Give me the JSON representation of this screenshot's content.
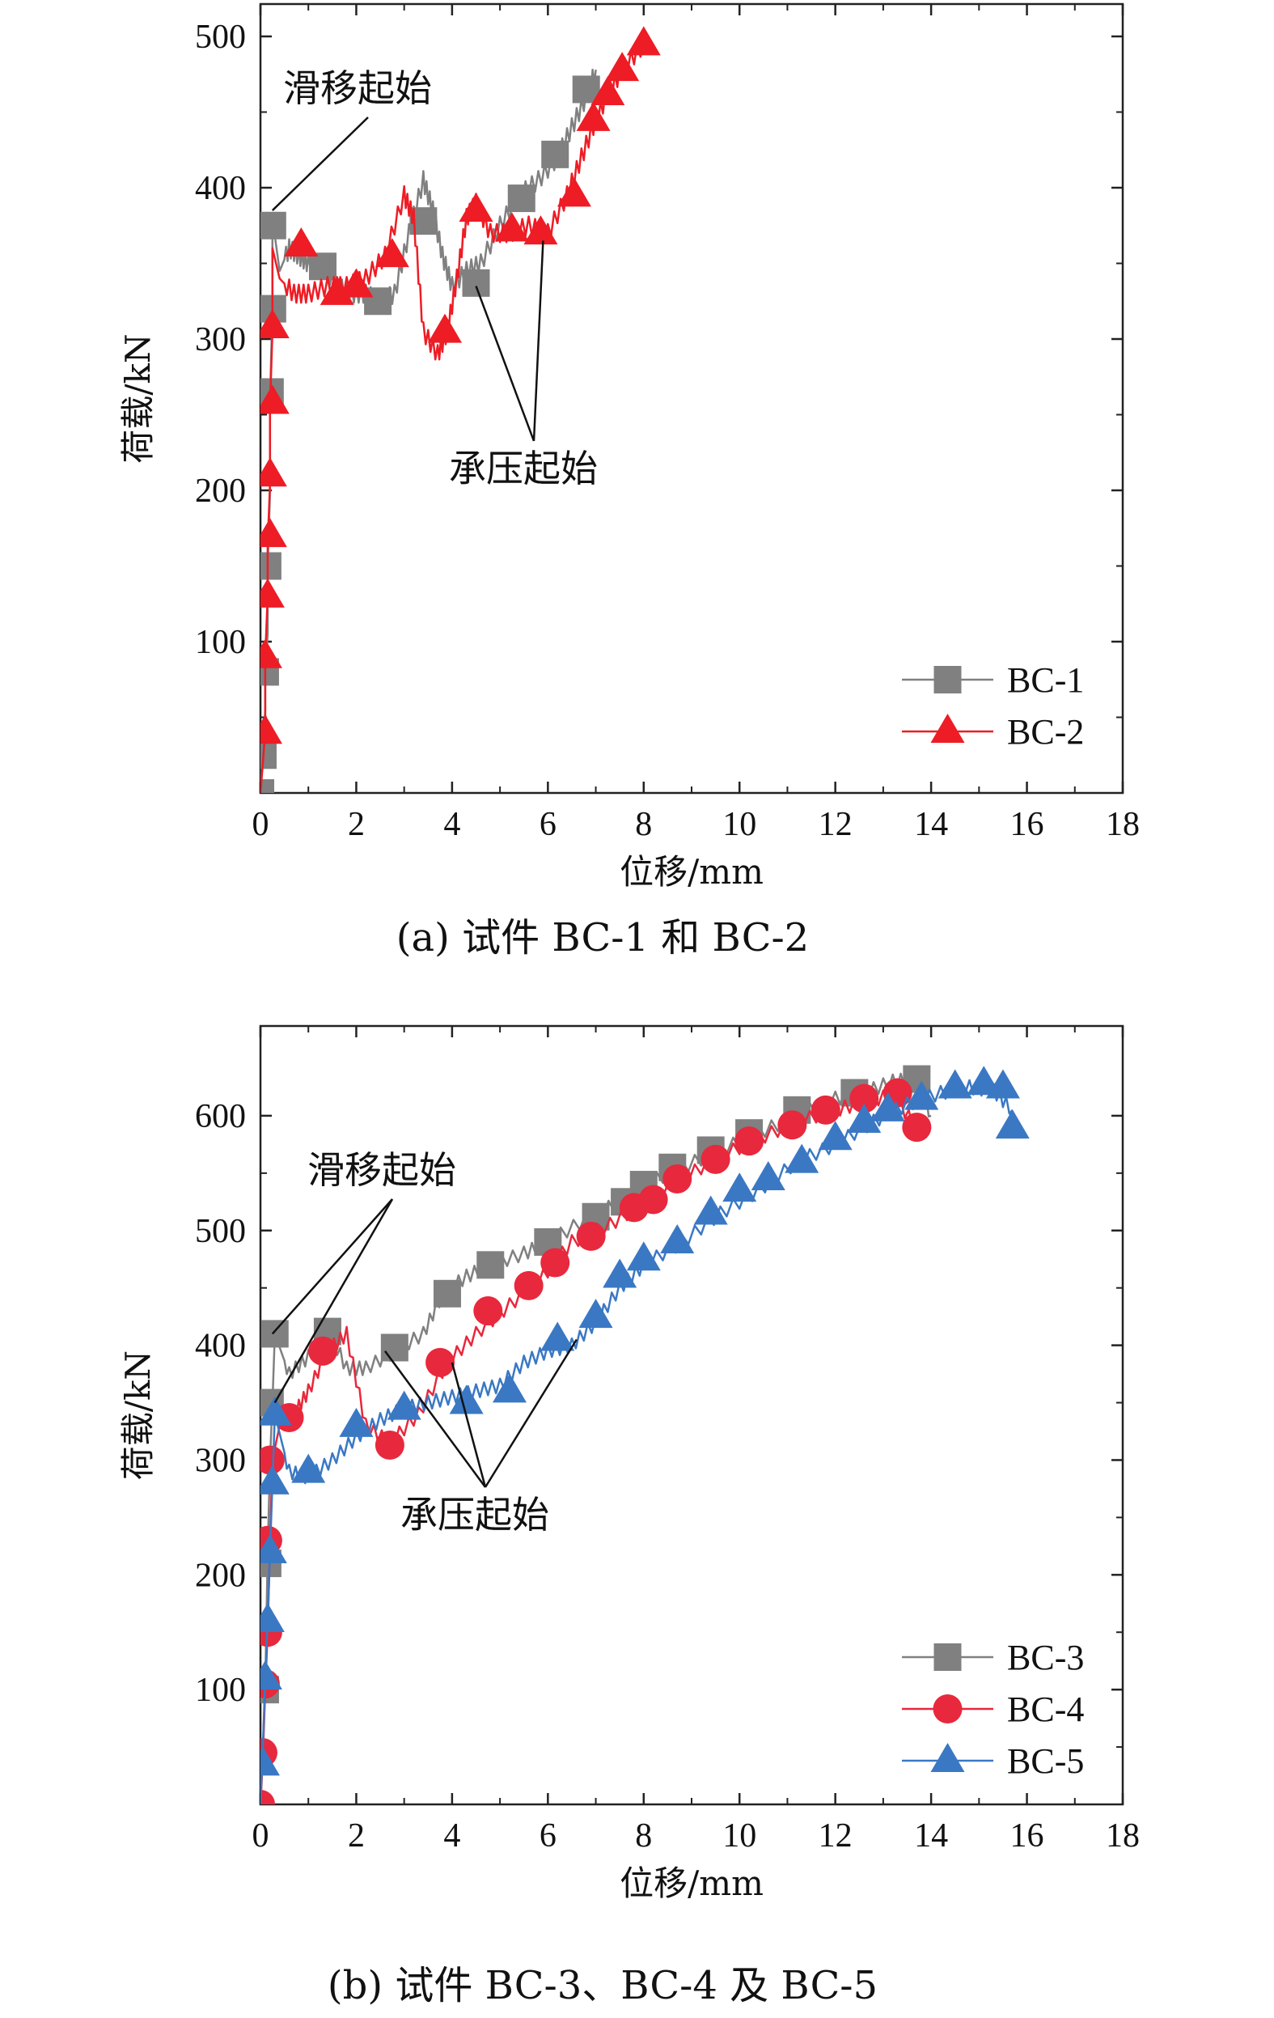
{
  "chart_data": [
    {
      "type": "line",
      "panel": "a",
      "caption": "(a) 试件 BC-1 和 BC-2",
      "xlabel": "位移/mm",
      "ylabel": "荷载/kN",
      "xlim": [
        0,
        18
      ],
      "ylim": [
        0,
        500
      ],
      "xticks": [
        0,
        2,
        4,
        6,
        8,
        10,
        12,
        14,
        16,
        18
      ],
      "yticks": [
        100,
        200,
        300,
        400,
        500
      ],
      "legend_position": "bottom-right",
      "annotations": [
        {
          "text": "滑移起始",
          "x": 0.25,
          "y": 385
        },
        {
          "text": "承压起始",
          "x": [
            4.5,
            5.9
          ],
          "y": [
            335,
            365
          ]
        }
      ],
      "series": [
        {
          "name": "BC-1",
          "color": "#808080",
          "marker": "square",
          "x": [
            0.0,
            0.05,
            0.1,
            0.1,
            0.15,
            0.15,
            0.2,
            0.2,
            0.25,
            0.25,
            0.4,
            0.6,
            0.8,
            1.0,
            1.3,
            1.6,
            1.9,
            2.2,
            2.5,
            2.8,
            3.1,
            3.4,
            3.6,
            3.8,
            4.0,
            4.3,
            4.6,
            5.0,
            5.4,
            5.8,
            6.2,
            6.5,
            6.8,
            7.0
          ],
          "y": [
            0,
            25,
            55,
            80,
            105,
            150,
            200,
            260,
            320,
            380,
            345,
            360,
            355,
            350,
            348,
            335,
            330,
            330,
            325,
            330,
            370,
            405,
            385,
            355,
            335,
            345,
            350,
            375,
            395,
            405,
            420,
            440,
            460,
            478
          ],
          "marker_x": [
            0.0,
            0.05,
            0.1,
            0.15,
            0.2,
            0.25,
            0.25,
            1.3,
            2.45,
            3.4,
            4.5,
            5.45,
            6.15,
            6.8
          ],
          "marker_y": [
            0,
            25,
            80,
            150,
            265,
            320,
            375,
            348,
            325,
            378,
            337,
            393,
            422,
            465
          ]
        },
        {
          "name": "BC-2",
          "color": "#ee1c25",
          "marker": "triangle",
          "x": [
            0.0,
            0.1,
            0.1,
            0.15,
            0.15,
            0.2,
            0.2,
            0.25,
            0.25,
            0.4,
            0.7,
            1.0,
            1.4,
            1.8,
            2.2,
            2.6,
            3.0,
            3.2,
            3.4,
            3.7,
            3.9,
            4.1,
            4.3,
            4.5,
            4.8,
            5.2,
            5.6,
            6.0,
            6.4,
            6.7,
            7.0,
            7.3,
            7.6,
            8.0
          ],
          "y": [
            0,
            40,
            90,
            130,
            165,
            205,
            255,
            305,
            360,
            340,
            330,
            330,
            335,
            335,
            340,
            355,
            395,
            380,
            305,
            290,
            305,
            340,
            380,
            390,
            370,
            370,
            375,
            370,
            395,
            420,
            445,
            465,
            480,
            495
          ],
          "marker_x": [
            0.1,
            0.1,
            0.15,
            0.2,
            0.2,
            0.25,
            0.25,
            0.85,
            1.6,
            2.0,
            2.75,
            3.85,
            4.5,
            5.25,
            5.85,
            6.55,
            6.95,
            7.25,
            7.55,
            8.0
          ],
          "marker_y": [
            40,
            90,
            130,
            170,
            210,
            258,
            308,
            362,
            330,
            335,
            355,
            305,
            385,
            372,
            370,
            395,
            445,
            462,
            478,
            495
          ]
        }
      ]
    },
    {
      "type": "line",
      "panel": "b",
      "caption": "(b) 试件 BC-3、BC-4 及 BC-5",
      "xlabel": "位移/mm",
      "ylabel": "荷载/kN",
      "xlim": [
        0,
        18
      ],
      "ylim": [
        0,
        650
      ],
      "xticks": [
        0,
        2,
        4,
        6,
        8,
        10,
        12,
        14,
        16,
        18
      ],
      "yticks": [
        100,
        200,
        300,
        400,
        500,
        600
      ],
      "legend_position": "bottom-right",
      "annotations": [
        {
          "text": "滑移起始",
          "x": [
            0.25,
            0.3
          ],
          "y": [
            410,
            350
          ]
        },
        {
          "text": "承压起始",
          "x": [
            2.6,
            4.0,
            6.6
          ],
          "y": [
            395,
            385,
            405
          ]
        }
      ],
      "series": [
        {
          "name": "BC-3",
          "color": "#808080",
          "marker": "square",
          "x": [
            0.0,
            0.1,
            0.15,
            0.2,
            0.25,
            0.3,
            0.6,
            1.0,
            1.4,
            1.8,
            2.2,
            2.8,
            3.4,
            3.8,
            4.3,
            4.8,
            5.5,
            6.0,
            6.8,
            7.5,
            8.0,
            8.8,
            9.6,
            10.4,
            11.2,
            12.0,
            12.6,
            13.2,
            13.7,
            14.0
          ],
          "y": [
            0,
            100,
            220,
            300,
            350,
            410,
            375,
            390,
            415,
            380,
            380,
            395,
            410,
            445,
            460,
            470,
            480,
            490,
            510,
            525,
            540,
            555,
            570,
            585,
            600,
            615,
            620,
            630,
            632,
            600
          ],
          "marker_x": [
            0.1,
            0.15,
            0.2,
            0.3,
            1.4,
            2.8,
            3.9,
            4.8,
            6.0,
            7.0,
            7.6,
            8.0,
            8.6,
            9.4,
            10.2,
            11.2,
            12.4,
            13.7
          ],
          "marker_y": [
            100,
            210,
            350,
            410,
            412,
            398,
            445,
            470,
            490,
            512,
            525,
            540,
            555,
            570,
            585,
            605,
            620,
            632
          ]
        },
        {
          "name": "BC-4",
          "color": "#e8283c",
          "marker": "circle",
          "x": [
            0.0,
            0.05,
            0.1,
            0.15,
            0.2,
            0.25,
            0.4,
            0.7,
            1.0,
            1.4,
            1.8,
            2.2,
            2.7,
            3.3,
            3.9,
            4.5,
            5.2,
            5.9,
            6.5,
            7.3,
            8.0,
            8.8,
            9.6,
            10.4,
            11.2,
            12.0,
            12.6,
            13.2,
            13.7
          ],
          "y": [
            0,
            40,
            100,
            150,
            230,
            300,
            330,
            340,
            360,
            395,
            410,
            330,
            315,
            340,
            385,
            410,
            435,
            460,
            490,
            505,
            525,
            545,
            565,
            580,
            595,
            605,
            612,
            618,
            590
          ],
          "marker_x": [
            0.0,
            0.05,
            0.1,
            0.15,
            0.15,
            0.2,
            0.6,
            1.3,
            2.7,
            3.75,
            4.75,
            5.6,
            6.15,
            6.9,
            7.8,
            8.2,
            8.7,
            9.5,
            10.2,
            11.1,
            11.8,
            12.6,
            13.3,
            13.7
          ],
          "marker_y": [
            0,
            45,
            105,
            150,
            230,
            300,
            337,
            395,
            313,
            385,
            430,
            452,
            472,
            495,
            520,
            527,
            545,
            562,
            578,
            592,
            605,
            615,
            620,
            590
          ]
        },
        {
          "name": "BC-5",
          "color": "#3a78c4",
          "marker": "triangle",
          "x": [
            0.0,
            0.05,
            0.1,
            0.15,
            0.2,
            0.25,
            0.3,
            0.6,
            1.0,
            1.5,
            2.0,
            2.5,
            3.0,
            3.5,
            4.0,
            4.5,
            5.0,
            5.5,
            6.0,
            6.5,
            7.0,
            7.5,
            8.0,
            8.8,
            9.6,
            10.4,
            11.2,
            12.0,
            12.8,
            13.5,
            14.2,
            14.8,
            15.3,
            15.7
          ],
          "y": [
            0,
            50,
            110,
            160,
            220,
            280,
            340,
            290,
            285,
            300,
            320,
            335,
            345,
            350,
            355,
            360,
            365,
            385,
            395,
            400,
            420,
            450,
            470,
            490,
            515,
            535,
            560,
            575,
            595,
            610,
            620,
            625,
            622,
            605
          ],
          "marker_x": [
            0.05,
            0.1,
            0.15,
            0.2,
            0.25,
            0.3,
            1.0,
            2.0,
            3.0,
            4.3,
            5.2,
            6.2,
            7.0,
            7.5,
            8.0,
            8.7,
            9.4,
            10.0,
            10.6,
            11.3,
            12.0,
            12.6,
            13.1,
            13.8,
            14.5,
            15.1,
            15.5,
            15.7
          ],
          "marker_y": [
            35,
            110,
            160,
            220,
            280,
            340,
            290,
            330,
            345,
            350,
            360,
            405,
            425,
            460,
            475,
            490,
            515,
            535,
            545,
            560,
            580,
            595,
            605,
            615,
            625,
            628,
            625,
            590
          ]
        }
      ]
    }
  ]
}
